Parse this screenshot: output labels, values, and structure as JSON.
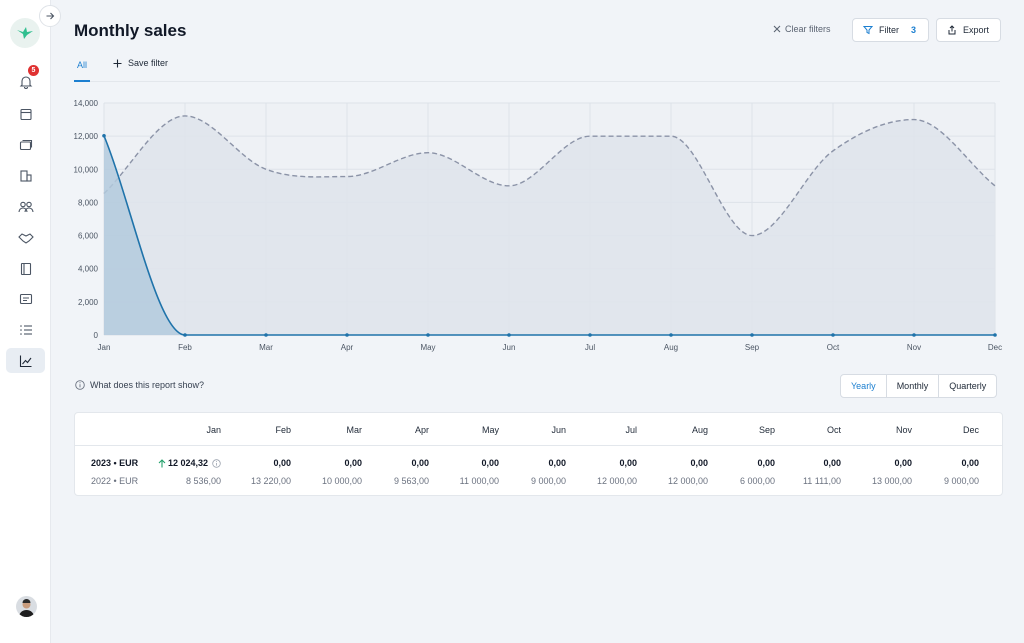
{
  "sidebar": {
    "notification_count": "5",
    "icons": [
      "bell-icon",
      "calendar-icon",
      "cards-icon",
      "buildings-icon",
      "users-icon",
      "handshake-icon",
      "book-icon",
      "message-icon",
      "list-icon",
      "chart-icon"
    ]
  },
  "header": {
    "title": "Monthly sales",
    "clear_filters": "Clear filters",
    "filter_label": "Filter",
    "filter_count": "3",
    "export_label": "Export"
  },
  "tabs": {
    "all": "All",
    "save_filter": "Save filter"
  },
  "chart_data": {
    "type": "area",
    "categories": [
      "Jan",
      "Feb",
      "Mar",
      "Apr",
      "May",
      "Jun",
      "Jul",
      "Aug",
      "Sep",
      "Oct",
      "Nov",
      "Dec"
    ],
    "y_ticks": [
      "14,000",
      "12,000",
      "10,000",
      "8,000",
      "6,000",
      "4,000",
      "2,000",
      "0"
    ],
    "ylim": [
      0,
      14000
    ],
    "grid": true,
    "series": [
      {
        "values": [
          8536,
          13220,
          10000,
          9563,
          11000,
          9000,
          12000,
          12000,
          6000,
          11111,
          13000,
          9000
        ],
        "color": "#8b93a7",
        "fill": "#dfe4ec",
        "dashed": true
      },
      {
        "values": [
          12024.32,
          0,
          0,
          0,
          0,
          0,
          0,
          0,
          0,
          0,
          0,
          0
        ],
        "color": "#1f73aa",
        "fill": "#b3cadd",
        "dashed": false
      }
    ]
  },
  "report": {
    "question": "What does this report show?",
    "periods": [
      "Yearly",
      "Monthly",
      "Quarterly"
    ],
    "selected_period": "Yearly"
  },
  "table": {
    "months": [
      "Jan",
      "Feb",
      "Mar",
      "Apr",
      "May",
      "Jun",
      "Jul",
      "Aug",
      "Sep",
      "Oct",
      "Nov",
      "Dec"
    ],
    "rows": [
      {
        "label": "2023 • EUR",
        "values": [
          "12 024,32",
          "0,00",
          "0,00",
          "0,00",
          "0,00",
          "0,00",
          "0,00",
          "0,00",
          "0,00",
          "0,00",
          "0,00",
          "0,00"
        ]
      },
      {
        "label": "2022 • EUR",
        "values": [
          "8 536,00",
          "13 220,00",
          "10 000,00",
          "9 563,00",
          "11 000,00",
          "9 000,00",
          "12 000,00",
          "12 000,00",
          "6 000,00",
          "11 111,00",
          "13 000,00",
          "9 000,00"
        ]
      }
    ],
    "colors": {
      "up_arrow": "#22a06b"
    }
  }
}
